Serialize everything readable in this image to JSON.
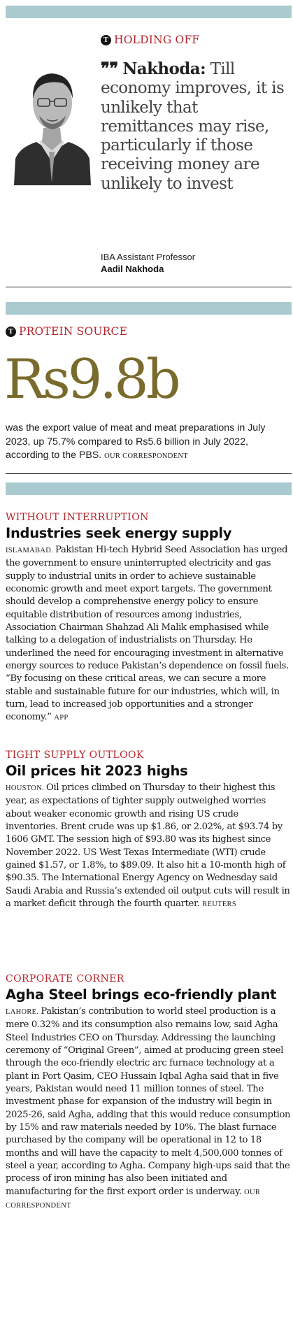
{
  "quote_section": {
    "kicker": "HOLDING OFF",
    "quote_name": "Nakhoda:",
    "quote_text": " Till economy improves, it is unlikely that remittances may rise, particularly if those receiving money are unlikely to invest",
    "person_role": "IBA Assistant Professor",
    "person_name": "Aadil Nakhoda"
  },
  "stat_section": {
    "kicker": "PROTEIN SOURCE",
    "figure": "Rs9.8b",
    "text": "was the export value of meat and meat preparations in July 2023, up 75.7% compared to Rs5.6 billion in July 2022, according to the PBS. ",
    "credit": "OUR CORRESPONDENT"
  },
  "articles": [
    {
      "kicker": "WITHOUT INTERRUPTION",
      "headline": "Industries seek energy supply",
      "dateline": "ISLAMABAD.",
      "body": "Pakistan Hi-tech Hybrid Seed Association has urged the government to ensure uninterrupted electricity and gas supply to industrial units in order to achieve sustainable economic growth and meet export targets. The government should develop a comprehensive energy policy to ensure equitable distribution of resources among industries, Association Chairman Shahzad Ali Malik emphasised while talking to a delegation of industrialists on Thursday. He underlined the need for encouraging investment in alternative energy sources to reduce Pakistan’s dependence on fossil fuels. “By focusing on these critical areas, we can secure a more stable and sustainable future for our industries, which will, in turn, lead to increased job opportunities and a stronger economy.” ",
      "credit": "APP"
    },
    {
      "kicker": "TIGHT SUPPLY OUTLOOK",
      "headline": "Oil prices hit 2023 highs",
      "dateline": "HOUSTON.",
      "body": "Oil prices climbed on Thursday to their highest this year, as expectations of tighter supply outweighed worries about weaker economic growth and rising US crude inventories. Brent crude was up $1.86, or 2.02%, at $93.74 by 1606 GMT. The session high of $93.80 was its highest since November 2022. US West Texas Intermediate (WTI) crude gained $1.57, or 1.8%, to $89.09. It also hit a 10-month high of $90.35. The International Energy Agency on Wednesday said Saudi Arabia and Russia’s extended oil output cuts will result in a market deficit through the fourth quarter. ",
      "credit": "REUTERS"
    },
    {
      "kicker": "CORPORATE CORNER",
      "headline": "Agha Steel brings eco-friendly plant",
      "dateline": "LAHORE.",
      "body": "Pakistan’s contribution to world steel production is a mere 0.32% and its consumption also remains low, said Agha Steel Industries CEO on Thursday. Addressing the launching ceremony of “Original Green”, aimed at producing green steel through the eco-friendly electric arc furnace technology at a plant in Port Qasim, CEO Hussain Iqbal Agha said that in five years, Pakistan would need 11 million tonnes of steel. The investment phase for expansion of the industry will begin in 2025-26, said Agha, adding that this would reduce consumption by 15% and raw materials needed by 10%. The blast furnace purchased by the company will be operational in 12 to 18 months and will have the capacity to melt 4,500,000 tonnes of steel a year, according to Agha. Company high-ups said that the process of iron mining has also been initiated and manufacturing for the first export order is underway. ",
      "credit": "OUR CORRESPONDENT"
    }
  ],
  "colors": {
    "band": "#a9cbcf",
    "kicker_red": "#b5252b",
    "big_figure": "#7a6b2d"
  },
  "icons": [
    "tribune-t-logo-icon",
    "quote-mark-icon",
    "portrait-photo"
  ]
}
